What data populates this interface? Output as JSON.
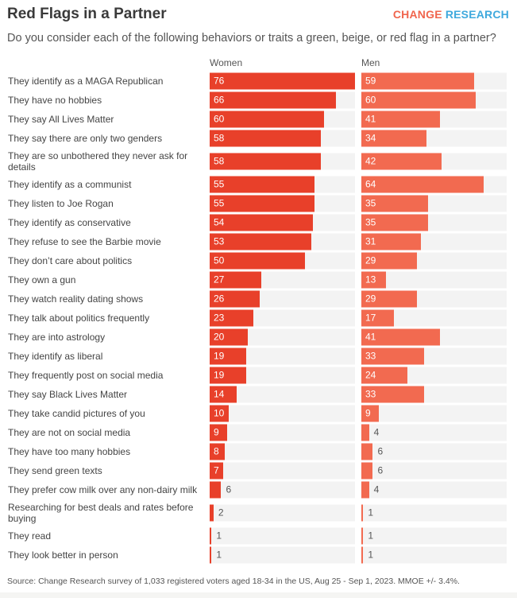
{
  "header": {
    "title": "Red Flags in a Partner",
    "logo_part1": "CHANGE",
    "logo_part2": "RESEARCH",
    "subtitle": "Do you consider each of the following behaviors or traits a green, beige, or red flag in a partner?"
  },
  "footer": {
    "source": "Source: Change Research survey of 1,033 registered voters aged 18-34 in the US, Aug 25 - Sep 1, 2023. MMOE +/- 3.4%."
  },
  "chart_data": {
    "type": "bar",
    "orientation": "horizontal",
    "xlim": [
      0,
      76
    ],
    "colors": {
      "Women": "#e8402a",
      "Men": "#f26a50",
      "track": "#f3f3f3"
    },
    "series_labels": [
      "Women",
      "Men"
    ],
    "categories": [
      "They identify as a MAGA Republican",
      "They have no hobbies",
      "They say All Lives Matter",
      "They say there are only two genders",
      "They are so unbothered they never ask for details",
      "They identify as a communist",
      "They listen to Joe Rogan",
      "They identify as conservative",
      "They refuse to see the Barbie movie",
      "They don’t care about politics",
      "They own a gun",
      "They watch reality dating shows",
      "They talk about politics frequently",
      "They are into astrology",
      "They identify as liberal",
      "They frequently post on social media",
      "They say Black Lives Matter",
      "They take candid pictures of you",
      "They are not on social media",
      "They have too many hobbies",
      "They send green texts",
      "They prefer cow milk over any non-dairy milk",
      "Researching for best deals and rates before buying",
      "They read",
      "They look better in person"
    ],
    "series": [
      {
        "name": "Women",
        "values": [
          76,
          66,
          60,
          58,
          58,
          55,
          55,
          54,
          53,
          50,
          27,
          26,
          23,
          20,
          19,
          19,
          14,
          10,
          9,
          8,
          7,
          6,
          2,
          1,
          1
        ]
      },
      {
        "name": "Men",
        "values": [
          59,
          60,
          41,
          34,
          42,
          64,
          35,
          35,
          31,
          29,
          13,
          29,
          17,
          41,
          33,
          24,
          33,
          9,
          4,
          6,
          6,
          4,
          1,
          1,
          1
        ]
      }
    ]
  }
}
